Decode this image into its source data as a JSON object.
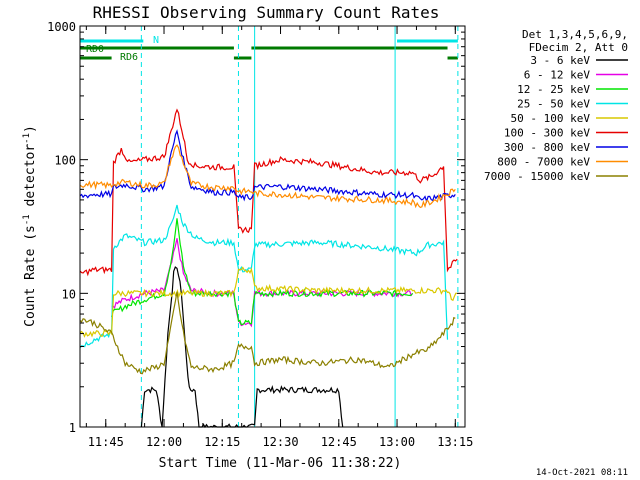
{
  "chart_data": {
    "type": "line",
    "title": "RHESSI Observing Summary Count Rates",
    "xlabel": "Start Time (11-Mar-06 11:38:22)",
    "ylabel_parts": [
      "Count Rate (s",
      "-1",
      " detector",
      "-1",
      ")"
    ],
    "ylabel": "Count Rate (s-1 detector-1)",
    "y_scale": "log",
    "ylim": [
      1,
      1000
    ],
    "xlim": [
      "11:38:22",
      "13:17:30"
    ],
    "x_ticks": [
      "11:45",
      "12:00",
      "12:15",
      "12:30",
      "12:45",
      "13:00",
      "13:15"
    ],
    "y_ticks": [
      "1",
      "10",
      "100",
      "1000"
    ],
    "legend_header": [
      "Det 1,3,4,5,6,9,",
      "FDecim 2, Att 0"
    ],
    "legend_position": "right",
    "timestamp": "14-Oct-2021 08:11",
    "grid": false,
    "flags": [
      {
        "label": "N",
        "color": "#00e5e5",
        "intervals": [
          [
            "11:38:22",
            "11:54:40"
          ],
          [
            "13:00:00",
            "13:15:40"
          ]
        ]
      },
      {
        "label": "RD0",
        "color": "#007a00",
        "intervals": [
          [
            "11:38:22",
            "12:18:00"
          ],
          [
            "12:22:30",
            "13:13:00"
          ]
        ]
      },
      {
        "label": "RD6",
        "color": "#007a00",
        "intervals": [
          [
            "11:38:22",
            "11:46:30"
          ],
          [
            "12:18:00",
            "12:22:30"
          ],
          [
            "13:13:00",
            "13:15:40"
          ]
        ]
      }
    ],
    "night_markers": [
      "11:38:22",
      "11:54:10",
      "12:19:10",
      "12:23:20",
      "12:59:30",
      "13:15:40"
    ],
    "night_marker_styles": [
      "solid",
      "dashed",
      "dashed",
      "solid",
      "solid",
      "dashed"
    ],
    "night_marker_color": "#00e5e5",
    "series": [
      {
        "name": "3 - 6 keV",
        "color": "#000000",
        "points": [
          [
            "11:54:10",
            1
          ],
          [
            "11:55:00",
            1.9
          ],
          [
            "11:58:00",
            1.9
          ],
          [
            "11:59:30",
            1
          ],
          [
            "12:01:00",
            5
          ],
          [
            "12:02:30",
            14
          ],
          [
            "12:03:20",
            16
          ],
          [
            "12:04:30",
            10
          ],
          [
            "12:05:30",
            4
          ],
          [
            "12:06:30",
            1.9
          ],
          [
            "12:08:00",
            1.9
          ],
          [
            "12:09:00",
            1
          ],
          [
            "12:23:20",
            1
          ],
          [
            "12:24:00",
            1.9
          ],
          [
            "12:45:00",
            1.9
          ],
          [
            "12:46:00",
            1
          ]
        ]
      },
      {
        "name": "6 - 12 keV",
        "color": "#e600e6",
        "points": [
          [
            "11:46:30",
            8
          ],
          [
            "11:50:00",
            9
          ],
          [
            "11:55:00",
            10
          ],
          [
            "12:00:00",
            10.5
          ],
          [
            "12:02:00",
            17
          ],
          [
            "12:03:20",
            25
          ],
          [
            "12:05:00",
            14
          ],
          [
            "12:07:00",
            10.5
          ],
          [
            "12:13:00",
            10
          ],
          [
            "12:18:00",
            10
          ],
          [
            "12:19:10",
            6
          ],
          [
            "12:22:30",
            6
          ],
          [
            "12:23:20",
            10
          ],
          [
            "12:40:00",
            10
          ],
          [
            "12:58:00",
            10
          ],
          [
            "13:04:00",
            10
          ]
        ]
      },
      {
        "name": "12 - 25 keV",
        "color": "#00e600",
        "points": [
          [
            "11:46:30",
            7
          ],
          [
            "11:50:00",
            8
          ],
          [
            "11:55:00",
            9
          ],
          [
            "12:00:00",
            10
          ],
          [
            "12:02:00",
            18
          ],
          [
            "12:03:20",
            35
          ],
          [
            "12:05:00",
            16
          ],
          [
            "12:07:00",
            10
          ],
          [
            "12:13:00",
            10
          ],
          [
            "12:18:00",
            10
          ],
          [
            "12:19:10",
            6
          ],
          [
            "12:22:30",
            6
          ],
          [
            "12:23:20",
            10
          ],
          [
            "12:40:00",
            10
          ],
          [
            "12:58:00",
            10
          ],
          [
            "13:04:00",
            10
          ]
        ]
      },
      {
        "name": "25 - 50 keV",
        "color": "#00e5e5",
        "points": [
          [
            "11:38:22",
            4
          ],
          [
            "11:42:00",
            4.5
          ],
          [
            "11:46:30",
            5
          ],
          [
            "11:47:00",
            22
          ],
          [
            "11:50:00",
            27
          ],
          [
            "11:55:00",
            24
          ],
          [
            "12:00:00",
            25
          ],
          [
            "12:02:00",
            33
          ],
          [
            "12:03:20",
            45
          ],
          [
            "12:05:00",
            33
          ],
          [
            "12:08:00",
            26
          ],
          [
            "12:13:00",
            24
          ],
          [
            "12:18:00",
            24
          ],
          [
            "12:19:10",
            15
          ],
          [
            "12:22:30",
            15
          ],
          [
            "12:23:20",
            23
          ],
          [
            "12:40:00",
            24
          ],
          [
            "12:55:00",
            22
          ],
          [
            "13:05:00",
            20
          ],
          [
            "13:08:00",
            23
          ],
          [
            "13:12:00",
            24
          ],
          [
            "13:13:00",
            4.5
          ]
        ]
      },
      {
        "name": "50 - 100 keV",
        "color": "#d9c800",
        "points": [
          [
            "11:38:22",
            5
          ],
          [
            "11:46:30",
            5
          ],
          [
            "11:47:00",
            10
          ],
          [
            "11:55:00",
            10
          ],
          [
            "12:00:00",
            10
          ],
          [
            "12:13:00",
            10
          ],
          [
            "12:18:00",
            10
          ],
          [
            "12:19:10",
            15
          ],
          [
            "12:22:30",
            15
          ],
          [
            "12:23:20",
            11
          ],
          [
            "12:40:00",
            10.5
          ],
          [
            "12:58:00",
            10.5
          ],
          [
            "13:04:00",
            10.5
          ],
          [
            "13:13:00",
            10.5
          ],
          [
            "13:14:00",
            9
          ],
          [
            "13:15:30",
            10
          ]
        ]
      },
      {
        "name": "100 - 300 keV",
        "color": "#e60000",
        "points": [
          [
            "11:38:22",
            14
          ],
          [
            "11:42:00",
            15
          ],
          [
            "11:46:30",
            15
          ],
          [
            "11:47:00",
            95
          ],
          [
            "11:49:00",
            120
          ],
          [
            "11:51:00",
            95
          ],
          [
            "11:55:00",
            100
          ],
          [
            "12:00:00",
            105
          ],
          [
            "12:01:30",
            150
          ],
          [
            "12:03:20",
            240
          ],
          [
            "12:05:00",
            150
          ],
          [
            "12:06:00",
            100
          ],
          [
            "12:08:00",
            90
          ],
          [
            "12:13:00",
            88
          ],
          [
            "12:18:00",
            88
          ],
          [
            "12:19:10",
            30
          ],
          [
            "12:22:30",
            30
          ],
          [
            "12:23:20",
            90
          ],
          [
            "12:30:00",
            100
          ],
          [
            "12:40:00",
            95
          ],
          [
            "12:55:00",
            80
          ],
          [
            "13:04:00",
            80
          ],
          [
            "13:06:00",
            70
          ],
          [
            "13:09:00",
            75
          ],
          [
            "13:12:00",
            90
          ],
          [
            "13:13:00",
            15
          ],
          [
            "13:15:30",
            18
          ]
        ]
      },
      {
        "name": "300 - 800 keV",
        "color": "#0000e6",
        "points": [
          [
            "11:38:22",
            53
          ],
          [
            "11:42:00",
            55
          ],
          [
            "11:46:30",
            55
          ],
          [
            "11:47:00",
            62
          ],
          [
            "11:50:00",
            65
          ],
          [
            "11:55:00",
            60
          ],
          [
            "12:00:00",
            63
          ],
          [
            "12:01:30",
            100
          ],
          [
            "12:03:20",
            165
          ],
          [
            "12:05:00",
            100
          ],
          [
            "12:07:00",
            63
          ],
          [
            "12:13:00",
            57
          ],
          [
            "12:18:00",
            57
          ],
          [
            "12:19:10",
            52
          ],
          [
            "12:22:30",
            52
          ],
          [
            "12:23:20",
            62
          ],
          [
            "12:30:00",
            63
          ],
          [
            "12:40:00",
            60
          ],
          [
            "12:55:00",
            55
          ],
          [
            "13:04:00",
            54
          ],
          [
            "13:06:00",
            50
          ],
          [
            "13:10:00",
            52
          ],
          [
            "13:15:00",
            55
          ]
        ]
      },
      {
        "name": "800 - 7000 keV",
        "color": "#ff8c00",
        "points": [
          [
            "11:38:22",
            65
          ],
          [
            "11:42:00",
            65
          ],
          [
            "11:46:30",
            64
          ],
          [
            "11:47:00",
            66
          ],
          [
            "11:50:00",
            68
          ],
          [
            "11:55:00",
            64
          ],
          [
            "12:00:00",
            66
          ],
          [
            "12:01:30",
            95
          ],
          [
            "12:03:20",
            130
          ],
          [
            "12:05:00",
            95
          ],
          [
            "12:07:00",
            66
          ],
          [
            "12:13:00",
            62
          ],
          [
            "12:18:00",
            62
          ],
          [
            "12:19:10",
            58
          ],
          [
            "12:22:30",
            58
          ],
          [
            "12:23:20",
            56
          ],
          [
            "12:30:00",
            55
          ],
          [
            "12:40:00",
            52
          ],
          [
            "12:55:00",
            50
          ],
          [
            "13:04:00",
            48
          ],
          [
            "13:06:00",
            45
          ],
          [
            "13:10:00",
            50
          ],
          [
            "13:15:00",
            60
          ]
        ]
      },
      {
        "name": "7000 - 15000 keV",
        "color": "#8b8000",
        "points": [
          [
            "11:38:22",
            6.5
          ],
          [
            "11:42:00",
            6
          ],
          [
            "11:46:30",
            5
          ],
          [
            "11:50:00",
            3
          ],
          [
            "11:54:00",
            2.6
          ],
          [
            "11:58:00",
            2.8
          ],
          [
            "12:00:00",
            3
          ],
          [
            "12:02:00",
            6
          ],
          [
            "12:03:20",
            10
          ],
          [
            "12:05:00",
            5
          ],
          [
            "12:07:00",
            2.8
          ],
          [
            "12:13:00",
            2.7
          ],
          [
            "12:18:00",
            3
          ],
          [
            "12:19:10",
            4
          ],
          [
            "12:22:30",
            4
          ],
          [
            "12:23:20",
            3
          ],
          [
            "12:30:00",
            3.2
          ],
          [
            "12:40:00",
            3
          ],
          [
            "12:50:00",
            3.2
          ],
          [
            "12:58:00",
            2.8
          ],
          [
            "13:04:00",
            3.5
          ],
          [
            "13:08:00",
            3.8
          ],
          [
            "13:12:00",
            5
          ],
          [
            "13:15:00",
            6.5
          ]
        ]
      }
    ]
  }
}
